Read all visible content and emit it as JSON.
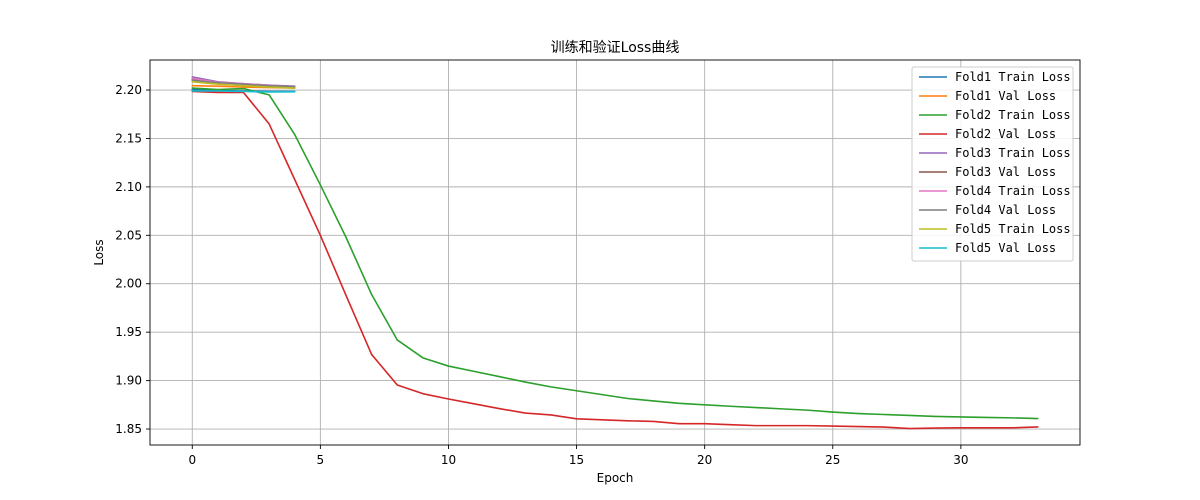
{
  "chart_data": {
    "type": "line",
    "title": "训练和验证Loss曲线",
    "xlabel": "Epoch",
    "ylabel": "Loss",
    "xlim": [
      -1.65,
      34.65
    ],
    "ylim": [
      1.8335,
      2.231
    ],
    "xticks": [
      0,
      5,
      10,
      15,
      20,
      25,
      30
    ],
    "yticks": [
      1.85,
      1.9,
      1.95,
      2.0,
      2.05,
      2.1,
      2.15,
      2.2
    ],
    "grid": true,
    "legend_position": "top-right",
    "series": [
      {
        "name": "Fold1 Train Loss",
        "color": "#1f77b4",
        "x": [
          0,
          1,
          2,
          3,
          4
        ],
        "y": [
          2.2005,
          2.1995,
          2.199,
          2.1985,
          2.1985
        ]
      },
      {
        "name": "Fold1 Val Loss",
        "color": "#ff7f0e",
        "x": [
          0,
          1,
          2,
          3,
          4
        ],
        "y": [
          2.2045,
          2.204,
          2.203,
          2.2025,
          2.202
        ]
      },
      {
        "name": "Fold2 Train Loss",
        "color": "#2ca02c",
        "x": [
          0,
          1,
          2,
          3,
          4,
          5,
          6,
          7,
          8,
          9,
          10,
          11,
          12,
          13,
          14,
          15,
          16,
          17,
          18,
          19,
          20,
          21,
          22,
          23,
          24,
          25,
          26,
          27,
          28,
          29,
          30,
          31,
          32,
          33
        ],
        "y": [
          2.202,
          2.2005,
          2.2015,
          2.195,
          2.154,
          2.102,
          2.048,
          1.989,
          1.942,
          1.9235,
          1.915,
          1.9095,
          1.904,
          1.8985,
          1.8935,
          1.8895,
          1.8855,
          1.8815,
          1.879,
          1.8765,
          1.875,
          1.8735,
          1.8722,
          1.8708,
          1.8695,
          1.8675,
          1.866,
          1.865,
          1.864,
          1.863,
          1.8625,
          1.862,
          1.8615,
          1.8608
        ]
      },
      {
        "name": "Fold2 Val Loss",
        "color": "#d62728",
        "x": [
          0,
          1,
          2,
          3,
          4,
          5,
          6,
          7,
          8,
          9,
          10,
          11,
          12,
          13,
          14,
          15,
          16,
          17,
          18,
          19,
          20,
          21,
          22,
          23,
          24,
          25,
          26,
          27,
          28,
          29,
          30,
          31,
          32,
          33
        ],
        "y": [
          2.1985,
          2.1975,
          2.1975,
          2.165,
          2.1075,
          2.05,
          1.988,
          1.927,
          1.8955,
          1.8865,
          1.881,
          1.876,
          1.871,
          1.8665,
          1.8645,
          1.8605,
          1.8595,
          1.8585,
          1.8578,
          1.8555,
          1.8555,
          1.8545,
          1.8535,
          1.8535,
          1.8535,
          1.853,
          1.8525,
          1.852,
          1.8505,
          1.851,
          1.8512,
          1.8512,
          1.8512,
          1.8522
        ]
      },
      {
        "name": "Fold3 Train Loss",
        "color": "#9467bd",
        "x": [
          0,
          1,
          2,
          3,
          4
        ],
        "y": [
          2.2135,
          2.2085,
          2.2065,
          2.205,
          2.204
        ]
      },
      {
        "name": "Fold3 Val Loss",
        "color": "#8c564b",
        "x": [
          0,
          1,
          2,
          3,
          4
        ],
        "y": [
          2.211,
          2.208,
          2.206,
          2.2045,
          2.2035
        ]
      },
      {
        "name": "Fold4 Train Loss",
        "color": "#e377c2",
        "x": [
          0,
          1,
          2,
          3,
          4
        ],
        "y": [
          2.212,
          2.208,
          2.2065,
          2.205,
          2.2035
        ]
      },
      {
        "name": "Fold4 Val Loss",
        "color": "#7f7f7f",
        "x": [
          0,
          1,
          2,
          3,
          4
        ],
        "y": [
          2.21,
          2.2075,
          2.206,
          2.2045,
          2.2035
        ]
      },
      {
        "name": "Fold5 Train Loss",
        "color": "#bcbd22",
        "x": [
          0,
          1,
          2,
          3,
          4
        ],
        "y": [
          2.2085,
          2.206,
          2.2045,
          2.203,
          2.202
        ]
      },
      {
        "name": "Fold5 Val Loss",
        "color": "#17becf",
        "x": [
          0,
          1,
          2,
          3,
          4
        ],
        "y": [
          2.199,
          2.199,
          2.1985,
          2.198,
          2.1982
        ]
      }
    ]
  }
}
